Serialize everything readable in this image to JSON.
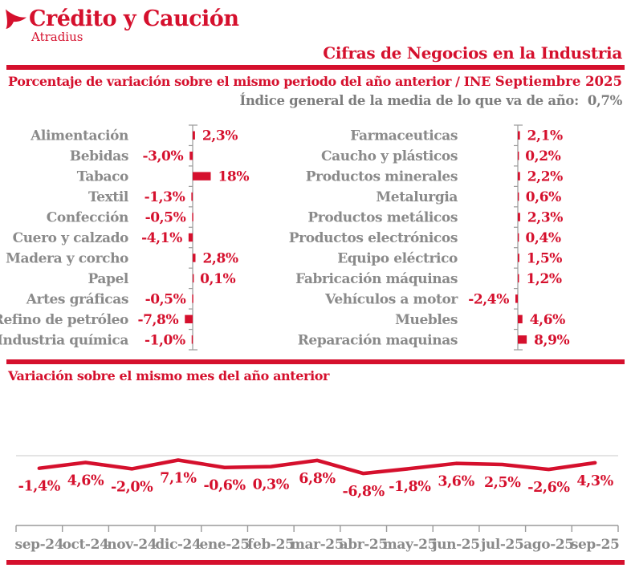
{
  "brand": {
    "name": "Crédito y Caución",
    "subname": "Atradius",
    "color_red": "#d5102d",
    "color_gray": "#8a8a8a"
  },
  "header": {
    "title": "Cifras de Negocios en la Industria",
    "subtitle_left": "Porcentaje de variación sobre el mismo periodo del año anterior / INE",
    "subtitle_right": "Septiembre 2025",
    "index_label": "Índice general de la media de lo que va de año:",
    "index_value": "0,7%"
  },
  "section2": {
    "title": "Variación sobre el mismo mes del año anterior"
  },
  "chart_data": [
    {
      "type": "bar",
      "orientation": "horizontal",
      "title": "Porcentaje de variación sobre el mismo periodo del año anterior / INE (columna izquierda)",
      "categories": [
        "Alimentación",
        "Bebidas",
        "Tabaco",
        "Textil",
        "Confección",
        "Cuero y calzado",
        "Madera y corcho",
        "Papel",
        "Artes gráficas",
        "Refino de petróleo",
        "Industria química"
      ],
      "values": [
        2.3,
        -3.0,
        18,
        -1.3,
        -0.5,
        -4.1,
        2.8,
        0.1,
        -0.5,
        -7.8,
        -1.0
      ],
      "value_labels": [
        "2,3%",
        "-3,0%",
        "18%",
        "-1,3%",
        "-0,5%",
        "-4,1%",
        "2,8%",
        "0,1%",
        "-0,5%",
        "-7,8%",
        "-1,0%"
      ],
      "unit": "%",
      "grid": false,
      "legend": false
    },
    {
      "type": "bar",
      "orientation": "horizontal",
      "title": "Porcentaje de variación sobre el mismo periodo del año anterior / INE (columna derecha)",
      "categories": [
        "Farmaceuticas",
        "Caucho y plásticos",
        "Productos minerales",
        "Metalurgia",
        "Productos metálicos",
        "Productos electrónicos",
        "Equipo eléctrico",
        "Fabricación máquinas",
        "Vehículos a motor",
        "Muebles",
        "Reparación maquinas"
      ],
      "values": [
        2.1,
        0.2,
        2.2,
        0.6,
        2.3,
        0.4,
        1.5,
        1.2,
        -2.4,
        4.6,
        8.9
      ],
      "value_labels": [
        "2,1%",
        "0,2%",
        "2,2%",
        "0,6%",
        "2,3%",
        "0,4%",
        "1,5%",
        "1,2%",
        "-2,4%",
        "4,6%",
        "8,9%"
      ],
      "unit": "%",
      "grid": false,
      "legend": false
    },
    {
      "type": "line",
      "title": "Variación sobre el mismo mes del año anterior",
      "x": [
        "sep-24",
        "oct-24",
        "nov-24",
        "dic-24",
        "ene-25",
        "feb-25",
        "mar-25",
        "abr-25",
        "may-25",
        "jun-25",
        "jul-25",
        "ago-25",
        "sep-25"
      ],
      "values": [
        -1.4,
        4.6,
        -2.0,
        7.1,
        -0.6,
        0.3,
        6.8,
        -6.8,
        -1.8,
        3.6,
        2.5,
        -2.6,
        4.3
      ],
      "value_labels": [
        "-1,4%",
        "4,6%",
        "-2,0%",
        "7,1%",
        "-0,6%",
        "0,3%",
        "6,8%",
        "-6,8%",
        "-1,8%",
        "3,6%",
        "2,5%",
        "-2,6%",
        "4,3%"
      ],
      "unit": "%",
      "grid": false,
      "legend": false
    }
  ]
}
